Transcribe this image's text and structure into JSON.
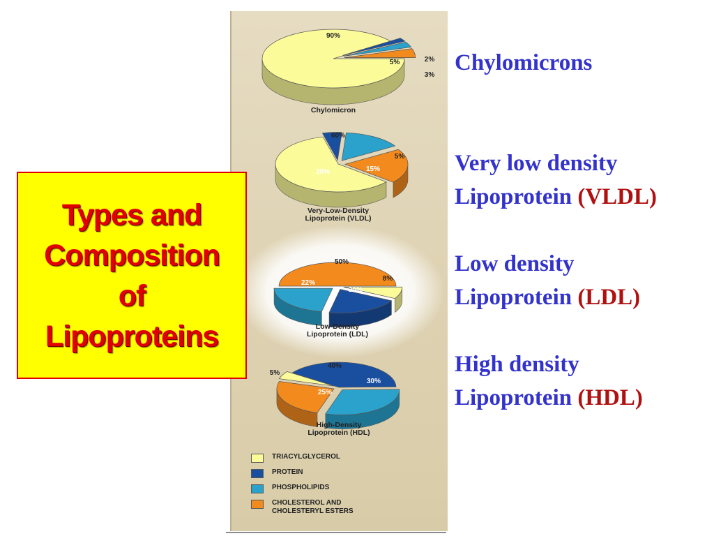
{
  "slide": {
    "title": "Types and\nComposition\nof\nLipoproteins",
    "types": [
      {
        "name": "Chylomicrons",
        "abbr": ""
      },
      {
        "name_line1": "Very low density",
        "name_line2": "Lipoprotein",
        "abbr": "(VLDL)"
      },
      {
        "name_line1": "Low density",
        "name_line2": "Lipoprotein",
        "abbr": "(LDL)"
      },
      {
        "name_line1": "High density",
        "name_line2": "Lipoprotein",
        "abbr": "(HDL)"
      }
    ]
  },
  "colors": {
    "TRIACYLGLYCEROL": "#fbfb9a",
    "PROTEIN": "#1a4fa0",
    "PHOSPHOLIPIDS": "#2aa2cc",
    "CHOLESTEROL": "#f28a1e"
  },
  "chart_data": [
    {
      "type": "pie",
      "title": "Chylomicron",
      "slices": [
        {
          "component": "TRIACYLGLYCEROL",
          "value": 90,
          "label": "90%"
        },
        {
          "component": "PROTEIN",
          "value": 2,
          "label": "2%"
        },
        {
          "component": "PHOSPHOLIPIDS",
          "value": 3,
          "label": "3%"
        },
        {
          "component": "CHOLESTEROL",
          "value": 5,
          "label": "5%"
        }
      ]
    },
    {
      "type": "pie",
      "title": "Very-Low-Density\nLipoprotein (VLDL)",
      "slices": [
        {
          "component": "TRIACYLGLYCEROL",
          "value": 60,
          "label": "60%"
        },
        {
          "component": "PROTEIN",
          "value": 5,
          "label": "5%"
        },
        {
          "component": "PHOSPHOLIPIDS",
          "value": 15,
          "label": "15%"
        },
        {
          "component": "CHOLESTEROL",
          "value": 20,
          "label": "20%"
        }
      ]
    },
    {
      "type": "pie",
      "title": "Low-Density\nLipoprotein (LDL)",
      "slices": [
        {
          "component": "CHOLESTEROL",
          "value": 50,
          "label": "50%"
        },
        {
          "component": "TRIACYLGLYCEROL",
          "value": 8,
          "label": "8%"
        },
        {
          "component": "PROTEIN",
          "value": 20,
          "label": "20%"
        },
        {
          "component": "PHOSPHOLIPIDS",
          "value": 22,
          "label": "22%"
        }
      ]
    },
    {
      "type": "pie",
      "title": "High-Density\nLipoprotein (HDL)",
      "slices": [
        {
          "component": "PROTEIN",
          "value": 40,
          "label": "40%"
        },
        {
          "component": "PHOSPHOLIPIDS",
          "value": 30,
          "label": "30%"
        },
        {
          "component": "CHOLESTEROL",
          "value": 25,
          "label": "25%"
        },
        {
          "component": "TRIACYLGLYCEROL",
          "value": 5,
          "label": "5%"
        }
      ]
    }
  ],
  "legend": [
    {
      "component": "TRIACYLGLYCEROL",
      "label": "TRIACYLGLYCEROL"
    },
    {
      "component": "PROTEIN",
      "label": "PROTEIN"
    },
    {
      "component": "PHOSPHOLIPIDS",
      "label": "PHOSPHOLIPIDS"
    },
    {
      "component": "CHOLESTEROL",
      "label": "CHOLESTEROL AND\nCHOLESTERYL ESTERS"
    }
  ]
}
